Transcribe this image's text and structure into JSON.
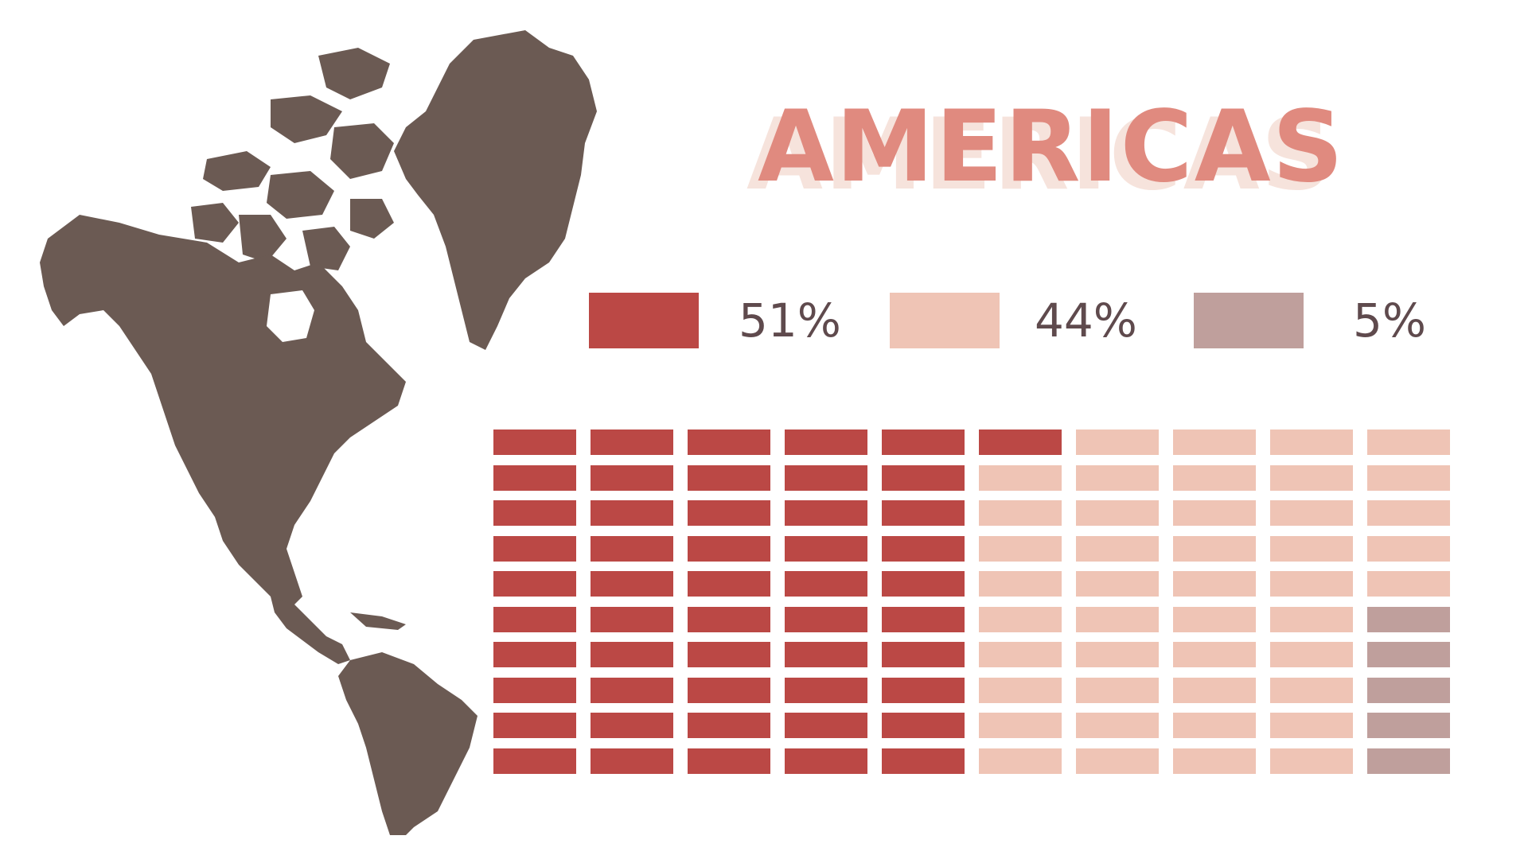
{
  "chart_data": {
    "type": "waffle",
    "title": "AMERICAS",
    "total_cells": 100,
    "grid": {
      "columns": 10,
      "rows": 10
    },
    "series": [
      {
        "label": "51%",
        "value": 51,
        "color": "#bb4845"
      },
      {
        "label": "44%",
        "value": 44,
        "color": "#efc4b5"
      },
      {
        "label": "5%",
        "value": 5,
        "color": "#bf9f9c"
      }
    ]
  },
  "map": {
    "region": "americas",
    "color": "#6b5a53"
  }
}
